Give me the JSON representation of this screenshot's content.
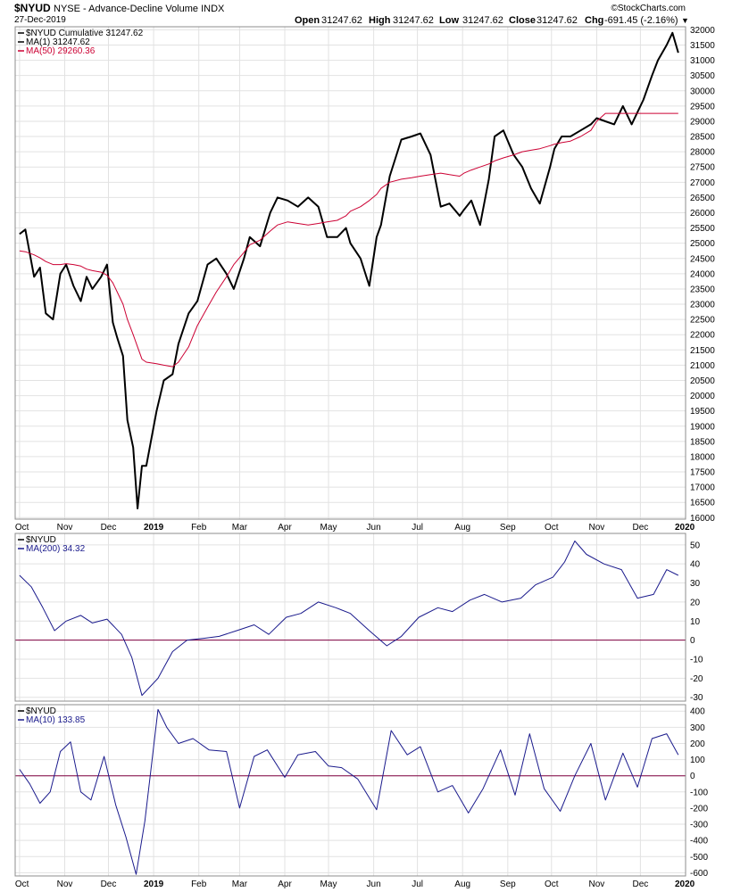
{
  "header": {
    "symbol": "$NYUD",
    "description": "NYSE - Advance-Decline Volume INDX",
    "date": "27-Dec-2019",
    "open_label": "Open",
    "open": "31247.62",
    "high_label": "High",
    "high": "31247.62",
    "low_label": "Low",
    "low": "31247.62",
    "close_label": "Close",
    "close": "31247.62",
    "chg_label": "Chg",
    "chg": "-691.45 (-2.16%)",
    "chg_arrow": "▼",
    "watermark": "©StockCharts.com"
  },
  "colors": {
    "price": "#000000",
    "ma50": "#cc0033",
    "ma200": "#1a1a8c",
    "ma10": "#1a1a8c",
    "zero_line": "#800040",
    "grid": "#e2e2e2",
    "chg_negative": "#cc0033"
  },
  "chart_data": [
    {
      "type": "line",
      "panel": "main",
      "legend": [
        {
          "label": "$NYUD Cumulative 31247.62",
          "color": "#000000"
        },
        {
          "label": "MA(1) 31247.62",
          "color": "#000000"
        },
        {
          "label": "MA(50) 29260.36",
          "color": "#cc0033"
        }
      ],
      "y_ticks": [
        16000,
        16500,
        17000,
        17500,
        18000,
        18500,
        19000,
        19500,
        20000,
        20500,
        21000,
        21500,
        22000,
        22500,
        23000,
        23500,
        24000,
        24500,
        25000,
        25500,
        26000,
        26500,
        27000,
        27500,
        28000,
        28500,
        29000,
        29500,
        30000,
        30500,
        31000,
        31500,
        32000
      ],
      "ylim": [
        15950,
        32100
      ],
      "x": [
        "2018-10-01",
        "2018-10-05",
        "2018-10-11",
        "2018-10-15",
        "2018-10-19",
        "2018-10-24",
        "2018-10-29",
        "2018-11-02",
        "2018-11-07",
        "2018-11-12",
        "2018-11-16",
        "2018-11-20",
        "2018-11-26",
        "2018-11-30",
        "2018-12-04",
        "2018-12-07",
        "2018-12-11",
        "2018-12-14",
        "2018-12-18",
        "2018-12-21",
        "2018-12-24",
        "2018-12-27",
        "2019-01-03",
        "2019-01-08",
        "2019-01-14",
        "2019-01-18",
        "2019-01-25",
        "2019-01-31",
        "2019-02-07",
        "2019-02-13",
        "2019-02-20",
        "2019-02-25",
        "2019-03-04",
        "2019-03-08",
        "2019-03-15",
        "2019-03-22",
        "2019-03-27",
        "2019-04-03",
        "2019-04-10",
        "2019-04-17",
        "2019-04-24",
        "2019-04-30",
        "2019-05-07",
        "2019-05-13",
        "2019-05-16",
        "2019-05-23",
        "2019-05-29",
        "2019-06-03",
        "2019-06-06",
        "2019-06-12",
        "2019-06-20",
        "2019-06-27",
        "2019-07-03",
        "2019-07-10",
        "2019-07-17",
        "2019-07-23",
        "2019-07-30",
        "2019-08-02",
        "2019-08-07",
        "2019-08-13",
        "2019-08-19",
        "2019-08-23",
        "2019-08-29",
        "2019-09-05",
        "2019-09-11",
        "2019-09-17",
        "2019-09-23",
        "2019-09-30",
        "2019-10-03",
        "2019-10-08",
        "2019-10-14",
        "2019-10-21",
        "2019-10-28",
        "2019-11-01",
        "2019-11-07",
        "2019-11-13",
        "2019-11-19",
        "2019-11-25",
        "2019-12-03",
        "2019-12-09",
        "2019-12-13",
        "2019-12-19",
        "2019-12-23",
        "2019-12-27"
      ],
      "series": [
        {
          "name": "$NYUD Cumulative",
          "color": "#000000",
          "values": [
            25300,
            25450,
            23900,
            24200,
            22700,
            22500,
            24000,
            24300,
            23600,
            23100,
            23900,
            23500,
            23900,
            24300,
            22400,
            21900,
            21300,
            19200,
            18300,
            16300,
            17700,
            17700,
            19500,
            20500,
            20700,
            21700,
            22700,
            23100,
            24300,
            24500,
            24000,
            23500,
            24500,
            25200,
            24900,
            26000,
            26500,
            26400,
            26200,
            26500,
            26200,
            25200,
            25200,
            25500,
            25000,
            24500,
            23600,
            25200,
            25600,
            27200,
            28400,
            28500,
            28600,
            27900,
            26200,
            26300,
            25900,
            26100,
            26400,
            25600,
            27100,
            28500,
            28700,
            27900,
            27500,
            26800,
            26300,
            27500,
            28100,
            28500,
            28500,
            28700,
            28900,
            29100,
            29000,
            28900,
            29500,
            28900,
            29700,
            30500,
            31000,
            31500,
            31900,
            31250
          ]
        },
        {
          "name": "MA(50)",
          "color": "#cc0033",
          "values": [
            24750,
            24720,
            24620,
            24520,
            24400,
            24300,
            24300,
            24330,
            24300,
            24250,
            24150,
            24100,
            24050,
            23950,
            23700,
            23400,
            23000,
            22500,
            22000,
            21600,
            21200,
            21100,
            21050,
            21000,
            20950,
            21100,
            21600,
            22300,
            22900,
            23400,
            23900,
            24300,
            24700,
            24950,
            25100,
            25400,
            25600,
            25700,
            25650,
            25600,
            25650,
            25700,
            25750,
            25900,
            26050,
            26200,
            26400,
            26600,
            26800,
            27000,
            27100,
            27150,
            27200,
            27250,
            27300,
            27250,
            27200,
            27300,
            27400,
            27500,
            27600,
            27700,
            27800,
            27900,
            28000,
            28050,
            28100,
            28200,
            28250,
            28300,
            28350,
            28500,
            28700,
            29000,
            29260,
            29260,
            29260,
            29260,
            29260,
            29260,
            29260,
            29260,
            29260,
            29260
          ]
        }
      ]
    },
    {
      "type": "line",
      "panel": "ma200",
      "legend": [
        {
          "label": "$NYUD",
          "color": "#000000"
        },
        {
          "label": "MA(200) 34.32",
          "color": "#1a1a8c"
        }
      ],
      "y_ticks": [
        -30,
        -20,
        -10,
        0,
        10,
        20,
        30,
        40,
        50
      ],
      "ylim": [
        -32,
        56
      ],
      "reference_line": 0,
      "x": [
        "2018-10-01",
        "2018-10-09",
        "2018-10-17",
        "2018-10-25",
        "2018-11-02",
        "2018-11-12",
        "2018-11-20",
        "2018-11-30",
        "2018-12-10",
        "2018-12-17",
        "2018-12-24",
        "2019-01-04",
        "2019-01-14",
        "2019-01-24",
        "2019-02-05",
        "2019-02-15",
        "2019-02-27",
        "2019-03-11",
        "2019-03-21",
        "2019-04-02",
        "2019-04-12",
        "2019-04-24",
        "2019-05-06",
        "2019-05-16",
        "2019-05-29",
        "2019-06-10",
        "2019-06-20",
        "2019-07-02",
        "2019-07-15",
        "2019-07-25",
        "2019-08-06",
        "2019-08-16",
        "2019-08-28",
        "2019-09-10",
        "2019-09-20",
        "2019-10-02",
        "2019-10-10",
        "2019-10-17",
        "2019-10-25",
        "2019-11-06",
        "2019-11-18",
        "2019-11-29",
        "2019-12-10",
        "2019-12-19",
        "2019-12-27"
      ],
      "series": [
        {
          "name": "MA(200)",
          "color": "#1a1a8c",
          "values": [
            34,
            28,
            17,
            5,
            10,
            13,
            9,
            11,
            3,
            -9,
            -29,
            -20,
            -6,
            0,
            1,
            2,
            5,
            8,
            3,
            12,
            14,
            20,
            17,
            14,
            5,
            -3,
            2,
            12,
            17,
            15,
            21,
            24,
            20,
            22,
            29,
            33,
            41,
            52,
            45,
            40,
            37,
            22,
            24,
            37,
            34
          ]
        }
      ]
    },
    {
      "type": "line",
      "panel": "ma10",
      "legend": [
        {
          "label": "$NYUD",
          "color": "#000000"
        },
        {
          "label": "MA(10) 133.85",
          "color": "#1a1a8c"
        }
      ],
      "y_ticks": [
        -600,
        -500,
        -400,
        -300,
        -200,
        -100,
        0,
        100,
        200,
        300,
        400
      ],
      "ylim": [
        -620,
        440
      ],
      "reference_line": 0,
      "x": [
        "2018-10-01",
        "2018-10-08",
        "2018-10-15",
        "2018-10-22",
        "2018-10-29",
        "2018-11-05",
        "2018-11-12",
        "2018-11-19",
        "2018-11-28",
        "2018-12-06",
        "2018-12-13",
        "2018-12-20",
        "2018-12-26",
        "2019-01-04",
        "2019-01-10",
        "2019-01-18",
        "2019-01-28",
        "2019-02-08",
        "2019-02-20",
        "2019-03-01",
        "2019-03-11",
        "2019-03-20",
        "2019-04-01",
        "2019-04-10",
        "2019-04-22",
        "2019-05-01",
        "2019-05-10",
        "2019-05-21",
        "2019-06-03",
        "2019-06-13",
        "2019-06-24",
        "2019-07-03",
        "2019-07-15",
        "2019-07-25",
        "2019-08-05",
        "2019-08-15",
        "2019-08-27",
        "2019-09-06",
        "2019-09-16",
        "2019-09-26",
        "2019-10-07",
        "2019-10-17",
        "2019-10-28",
        "2019-11-07",
        "2019-11-19",
        "2019-11-29",
        "2019-12-09",
        "2019-12-19",
        "2019-12-27"
      ],
      "series": [
        {
          "name": "MA(10)",
          "color": "#1a1a8c",
          "values": [
            40,
            -50,
            -170,
            -100,
            150,
            210,
            -100,
            -150,
            120,
            -180,
            -380,
            -610,
            -280,
            410,
            300,
            200,
            230,
            160,
            150,
            -200,
            120,
            160,
            -10,
            130,
            150,
            60,
            50,
            -20,
            -210,
            280,
            130,
            180,
            -100,
            -60,
            -230,
            -80,
            160,
            -120,
            260,
            -80,
            -220,
            0,
            200,
            -150,
            140,
            -70,
            230,
            260,
            130
          ]
        }
      ]
    }
  ],
  "x_axis_labels": [
    "Oct",
    "Nov",
    "Dec",
    "2019",
    "Feb",
    "Mar",
    "Apr",
    "May",
    "Jun",
    "Jul",
    "Aug",
    "Sep",
    "Oct",
    "Nov",
    "Dec",
    "2020"
  ]
}
